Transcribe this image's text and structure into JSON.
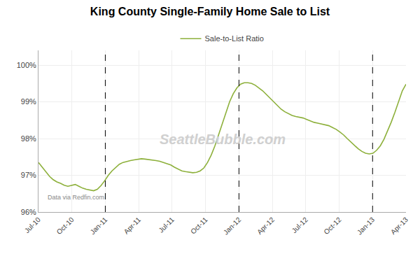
{
  "chart_data": {
    "type": "line",
    "title": "King County Single-Family Home Sale to List",
    "x": [
      0,
      0.33,
      0.66,
      0.99,
      1.32,
      1.65,
      1.98,
      2.31,
      2.64,
      2.97,
      3.3,
      3.63,
      3.96,
      4.29,
      4.62,
      4.95,
      5.28,
      5.61,
      5.94,
      6.27,
      6.6,
      6.93,
      7.26,
      7.59,
      7.92,
      8.25,
      8.58,
      8.91,
      9.24,
      9.57,
      9.9,
      10.23,
      10.56,
      10.89,
      11.22,
      11.55,
      11.88,
      12.21,
      12.54,
      12.87,
      13.2,
      13.53,
      13.86,
      14.19,
      14.52,
      14.85,
      15.18,
      15.51,
      15.84,
      16.17,
      16.5,
      16.83,
      17.16,
      17.49,
      17.82,
      18.15,
      18.48,
      18.81,
      19.14,
      19.47,
      19.8,
      20.13,
      20.46,
      20.79,
      21.12,
      21.45,
      21.78,
      22.11,
      22.44,
      22.77,
      23.1,
      23.43,
      23.76,
      24.09,
      24.42,
      24.75,
      25.08,
      25.41,
      25.74,
      26.07,
      26.4,
      26.73,
      27.06,
      27.39,
      27.72,
      28.05,
      28.38,
      28.71,
      29.04,
      29.37,
      29.7,
      30.03,
      30.36,
      30.69,
      31.02,
      31.35,
      31.68,
      32.01,
      32.34,
      32.67,
      33
    ],
    "series": [
      {
        "name": "Sale-to-List Ratio",
        "color": "#8db03b",
        "line_style": "solid",
        "values": [
          97.35,
          97.22,
          97.08,
          96.97,
          96.88,
          96.82,
          96.78,
          96.73,
          96.7,
          96.73,
          96.75,
          96.7,
          96.65,
          96.62,
          96.6,
          96.58,
          96.62,
          96.72,
          96.85,
          97.0,
          97.12,
          97.22,
          97.3,
          97.35,
          97.38,
          97.4,
          97.42,
          97.44,
          97.45,
          97.44,
          97.43,
          97.42,
          97.4,
          97.38,
          97.35,
          97.32,
          97.28,
          97.22,
          97.17,
          97.12,
          97.1,
          97.08,
          97.07,
          97.08,
          97.12,
          97.2,
          97.35,
          97.55,
          97.8,
          98.1,
          98.4,
          98.7,
          99.0,
          99.22,
          99.38,
          99.48,
          99.52,
          99.52,
          99.5,
          99.45,
          99.38,
          99.3,
          99.2,
          99.1,
          98.98,
          98.88,
          98.8,
          98.73,
          98.68,
          98.63,
          98.6,
          98.58,
          98.56,
          98.52,
          98.48,
          98.44,
          98.42,
          98.4,
          98.38,
          98.35,
          98.3,
          98.25,
          98.18,
          98.1,
          98.0,
          97.9,
          97.8,
          97.72,
          97.65,
          97.6,
          97.58,
          97.6,
          97.68,
          97.8,
          97.98,
          98.2,
          98.45,
          98.72,
          99.0,
          99.3,
          99.48
        ]
      }
    ],
    "vlines": [
      6,
      18,
      30
    ],
    "xlim": [
      0,
      33
    ],
    "xticks": [
      {
        "value": 0,
        "label": "Jul-10"
      },
      {
        "value": 3,
        "label": "Oct-10"
      },
      {
        "value": 6,
        "label": "Jan-11"
      },
      {
        "value": 9,
        "label": "Apr-11"
      },
      {
        "value": 12,
        "label": "Jul-11"
      },
      {
        "value": 15,
        "label": "Oct-11"
      },
      {
        "value": 18,
        "label": "Jan-12"
      },
      {
        "value": 21,
        "label": "Apr-12"
      },
      {
        "value": 24,
        "label": "Jul-12"
      },
      {
        "value": 27,
        "label": "Oct-12"
      },
      {
        "value": 30,
        "label": "Jan-13"
      },
      {
        "value": 33,
        "label": "Apr-13"
      }
    ],
    "ylim": [
      96.0,
      100.4
    ],
    "yticks": [
      {
        "value": 96,
        "label": "96%"
      },
      {
        "value": 97,
        "label": "97%"
      },
      {
        "value": 98,
        "label": "98%"
      },
      {
        "value": 99,
        "label": "99%"
      },
      {
        "value": 100,
        "label": "100%"
      }
    ],
    "annotations": [
      "SeattleBubble.com",
      "Data via Redfin.com"
    ],
    "grid": true,
    "legend": "top"
  }
}
